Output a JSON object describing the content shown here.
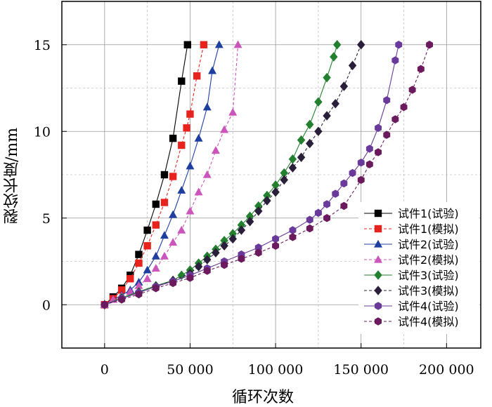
{
  "chart_data": {
    "type": "line",
    "xlabel": "循环次数",
    "ylabel": "裂纹长度/mm",
    "xlim": [
      -25000,
      220000
    ],
    "ylim": [
      -2.5,
      17.5
    ],
    "xticks": [
      0,
      50000,
      100000,
      150000,
      200000
    ],
    "xtick_labels": [
      "0",
      "50 000",
      "100 000",
      "150 000",
      "200 000"
    ],
    "yticks": [
      0,
      5,
      10,
      15
    ],
    "ytick_labels": [
      "0",
      "5",
      "10",
      "15"
    ],
    "grid": true,
    "legend_position": "bottom-right",
    "series": [
      {
        "name": "试件1(试验)",
        "color": "#000000",
        "marker": "square",
        "dash": false,
        "x": [
          0,
          5000,
          10000,
          15000,
          20000,
          25000,
          30000,
          35000,
          40000,
          45000,
          48500
        ],
        "y": [
          0,
          0.45,
          0.95,
          1.7,
          2.9,
          4.3,
          5.8,
          7.5,
          9.6,
          12.9,
          15.0
        ]
      },
      {
        "name": "试件1(模拟)",
        "color": "#e8231e",
        "marker": "square",
        "dash": true,
        "x": [
          0,
          5000,
          10000,
          15000,
          20000,
          25000,
          30000,
          35000,
          40000,
          45000,
          48000,
          50000,
          54000,
          58000
        ],
        "y": [
          0,
          0.35,
          0.85,
          1.5,
          2.4,
          3.4,
          4.6,
          5.9,
          7.4,
          9.2,
          10.2,
          11.0,
          13.2,
          15.0
        ]
      },
      {
        "name": "试件2(试验)",
        "color": "#1f3fa0",
        "marker": "triangle",
        "dash": false,
        "x": [
          0,
          5000,
          10000,
          15000,
          20000,
          25000,
          30000,
          35000,
          40000,
          45000,
          50000,
          55000,
          60000,
          63000,
          67000
        ],
        "y": [
          0,
          0.3,
          0.55,
          0.85,
          1.3,
          2.0,
          2.8,
          4.0,
          5.2,
          6.6,
          8.0,
          9.6,
          11.4,
          13.5,
          15.0
        ]
      },
      {
        "name": "试件2(模拟)",
        "color": "#cc55bb",
        "marker": "triangle",
        "dash": true,
        "x": [
          0,
          5000,
          10000,
          15000,
          20000,
          25000,
          30000,
          35000,
          40000,
          45000,
          50000,
          55000,
          60000,
          65000,
          70000,
          75000,
          78000
        ],
        "y": [
          0,
          0.3,
          0.5,
          0.75,
          1.1,
          1.5,
          2.1,
          2.8,
          3.6,
          4.3,
          5.4,
          6.5,
          7.5,
          8.9,
          10.1,
          11.1,
          15.0
        ]
      },
      {
        "name": "试件3(试验)",
        "color": "#23802e",
        "marker": "diamond",
        "dash": false,
        "x": [
          0,
          10000,
          20000,
          30000,
          40000,
          45000,
          50000,
          55000,
          60000,
          65000,
          70000,
          75000,
          80000,
          85000,
          90000,
          95000,
          100000,
          105000,
          110000,
          115000,
          120000,
          125000,
          130000,
          134000,
          136000
        ],
        "y": [
          0,
          0.4,
          0.75,
          1.1,
          1.4,
          1.7,
          2.0,
          2.4,
          2.8,
          3.2,
          3.7,
          4.1,
          4.6,
          5.1,
          5.7,
          6.3,
          6.9,
          7.6,
          8.4,
          9.5,
          10.4,
          11.7,
          13.1,
          14.3,
          15.0
        ]
      },
      {
        "name": "试件3(模拟)",
        "color": "#2a1f3a",
        "marker": "diamond",
        "dash": true,
        "x": [
          0,
          10000,
          20000,
          30000,
          40000,
          50000,
          55000,
          60000,
          65000,
          70000,
          75000,
          80000,
          85000,
          90000,
          95000,
          100000,
          105000,
          110000,
          115000,
          120000,
          125000,
          130000,
          135000,
          140000,
          145000,
          150000
        ],
        "y": [
          0,
          0.35,
          0.7,
          1.05,
          1.4,
          1.8,
          2.2,
          2.6,
          3.0,
          3.4,
          3.8,
          4.3,
          4.8,
          5.4,
          6.0,
          6.5,
          7.2,
          7.9,
          8.5,
          9.3,
          10.0,
          10.9,
          11.6,
          12.6,
          13.8,
          15.0
        ]
      },
      {
        "name": "试件4(试验)",
        "color": "#6a3a9a",
        "marker": "hexagon",
        "dash": false,
        "x": [
          0,
          10000,
          20000,
          30000,
          40000,
          50000,
          60000,
          70000,
          80000,
          90000,
          100000,
          110000,
          120000,
          125000,
          130000,
          135000,
          140000,
          145000,
          150000,
          155000,
          160000,
          165000,
          170000,
          172000
        ],
        "y": [
          0,
          0.35,
          0.7,
          1.05,
          1.35,
          1.7,
          2.1,
          2.5,
          2.9,
          3.3,
          3.8,
          4.3,
          4.9,
          5.3,
          5.8,
          6.4,
          7.0,
          7.6,
          8.2,
          9.0,
          10.2,
          11.8,
          14.1,
          15.0
        ]
      },
      {
        "name": "试件4(模拟)",
        "color": "#6b1a5e",
        "marker": "hexagon",
        "dash": true,
        "x": [
          0,
          10000,
          20000,
          30000,
          40000,
          50000,
          60000,
          70000,
          80000,
          90000,
          100000,
          110000,
          120000,
          130000,
          140000,
          150000,
          155000,
          160000,
          165000,
          170000,
          175000,
          180000,
          185000,
          190000
        ],
        "y": [
          0,
          0.3,
          0.6,
          0.95,
          1.25,
          1.55,
          1.95,
          2.3,
          2.65,
          3.0,
          3.4,
          3.9,
          4.4,
          5.0,
          5.7,
          7.2,
          8.1,
          8.8,
          9.8,
          10.7,
          11.4,
          12.4,
          13.6,
          15.0
        ]
      }
    ]
  }
}
